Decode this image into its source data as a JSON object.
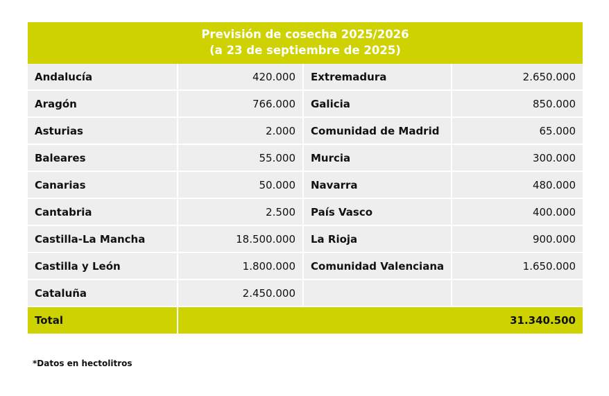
{
  "title_line1": "Previsión de cosecha 2025/2026",
  "title_line2": "(a 23 de septiembre de 2025)",
  "rows": [
    {
      "left_name": "Andalucía",
      "left_value": "420.000",
      "right_name": "Extremadura",
      "right_value": "2.650.000"
    },
    {
      "left_name": "Aragón",
      "left_value": "766.000",
      "right_name": "Galicia",
      "right_value": "850.000"
    },
    {
      "left_name": "Asturias",
      "left_value": "2.000",
      "right_name": "Comunidad de Madrid",
      "right_value": "65.000"
    },
    {
      "left_name": "Baleares",
      "left_value": "55.000",
      "right_name": "Murcia",
      "right_value": "300.000"
    },
    {
      "left_name": "Canarias",
      "left_value": "50.000",
      "right_name": "Navarra",
      "right_value": "480.000"
    },
    {
      "left_name": "Cantabria",
      "left_value": "2.500",
      "right_name": "País Vasco",
      "right_value": "400.000"
    },
    {
      "left_name": "Castilla-La Mancha",
      "left_value": "18.500.000",
      "right_name": "La Rioja",
      "right_value": "900.000"
    },
    {
      "left_name": "Castilla y León",
      "left_value": "1.800.000",
      "right_name": "Comunidad Valenciana",
      "right_value": "1.650.000"
    },
    {
      "left_name": "Cataluña",
      "left_value": "2.450.000",
      "right_name": "",
      "right_value": ""
    }
  ],
  "total_label": "Total",
  "total_value": "31.340.500",
  "footnote": "*Datos en hectolitros",
  "colors": {
    "accent": "#cdd200",
    "row_background": "#eeeeee"
  }
}
